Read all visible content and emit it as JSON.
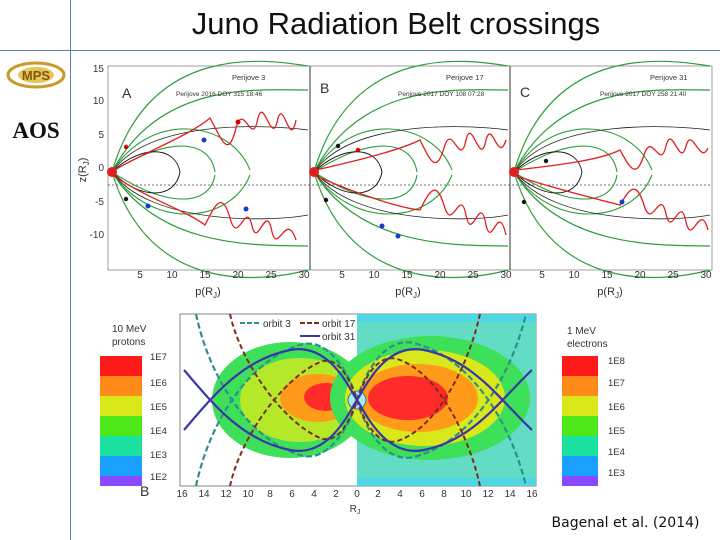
{
  "slide": {
    "title": "Juno Radiation Belt crossings",
    "credit": "Bagenal et al. (2014)"
  },
  "logos": {
    "mps": "MPS",
    "aos": "AOS"
  },
  "top_panels": {
    "ylabel": "z(R",
    "ylabel_sub": "J",
    "ylabel_close": ")",
    "yticks": [
      "15",
      "10",
      "5",
      "0",
      "-5",
      "-10"
    ],
    "xticks": [
      "5",
      "10",
      "15",
      "20",
      "25",
      "30"
    ],
    "xlabel": "p(R",
    "xlabel_sub": "J",
    "xlabel_close": ")",
    "panels": [
      {
        "letter": "A",
        "perijove": "Perijove 3",
        "time": "Perijove 2016 DOY 315 18:46"
      },
      {
        "letter": "B",
        "perijove": "Perijove 17",
        "time": "Perijove 2017 DOY 108 07:28"
      },
      {
        "letter": "C",
        "perijove": "Perijove 31",
        "time": "Perijove 2017 DOY 258 21:40"
      }
    ]
  },
  "bottom_panel": {
    "letter": "B",
    "left_colorbar": {
      "title1": "10 MeV",
      "title2": "protons",
      "labels": [
        "1E7",
        "1E6",
        "1E5",
        "1E4",
        "1E3",
        "1E2"
      ]
    },
    "right_colorbar": {
      "title1": "1 MeV",
      "title2": "electrons",
      "labels": [
        "1E8",
        "1E7",
        "1E6",
        "1E5",
        "1E4",
        "1E3"
      ]
    },
    "legend": [
      "orbit 3",
      "orbit 17",
      "orbit 31"
    ],
    "xticks": [
      "16",
      "14",
      "12",
      "10",
      "8",
      "6",
      "4",
      "2",
      "0",
      "2",
      "4",
      "6",
      "8",
      "10",
      "12",
      "14",
      "16"
    ],
    "xlabel": "R",
    "xlabel_sub": "J"
  },
  "colors": {
    "orbit3": "#2f8f8f",
    "orbit17": "#7b2d1a",
    "orbit31": "#3a35a8",
    "field_lines": "#2e9e3c",
    "trajectory": "#e02020"
  }
}
